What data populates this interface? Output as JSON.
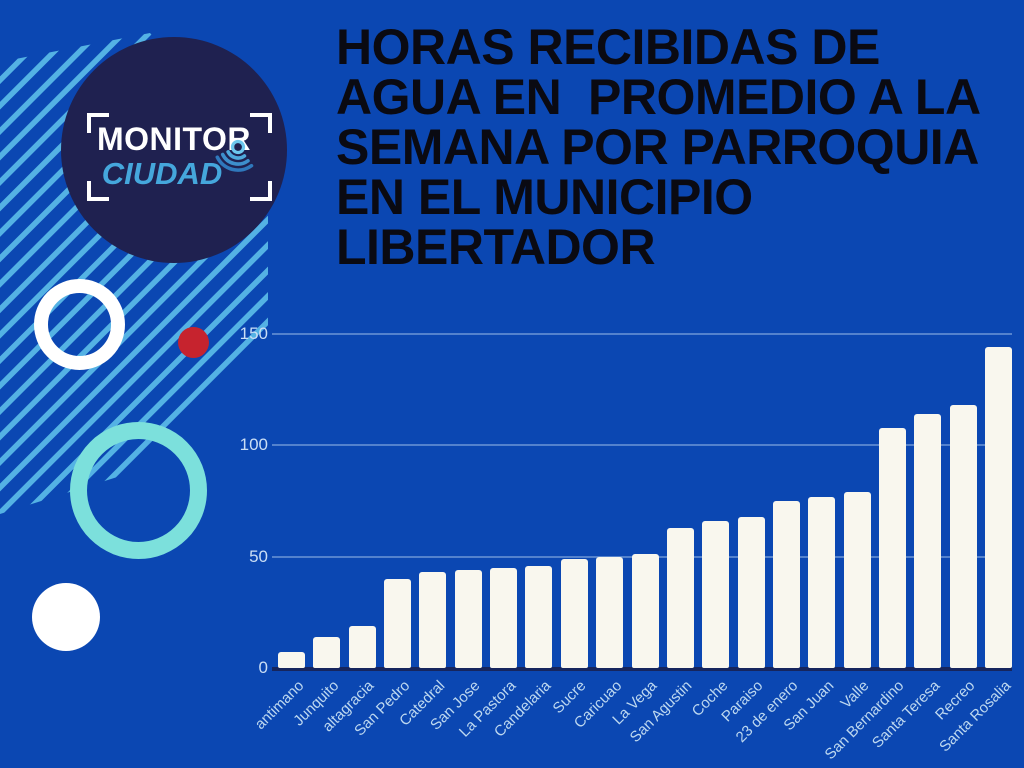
{
  "page": {
    "background_color": "#0b47b2",
    "stripe_color": "#54b2e4"
  },
  "logo": {
    "line1": "MONITOR",
    "line2": "CIUDAD",
    "circle_color": "#1f2150",
    "line1_color": "#ffffff",
    "line2_color": "#45a7dc",
    "icon": "signal-arcs-icon"
  },
  "decor": {
    "red_dot_color": "#c6232e",
    "cyan_ring_color": "#7ce0dc",
    "white_color": "#ffffff"
  },
  "header": {
    "title_lines": [
      "HORAS RECIBIDAS DE",
      "AGUA EN  PROMEDIO A LA",
      "SEMANA POR PARROQUIA",
      "EN EL MUNICIPIO",
      "LIBERTADOR"
    ],
    "title_color": "#0a0a12"
  },
  "chart_data": {
    "type": "bar",
    "title": "Horas recibidas de agua en promedio a la semana por parroquia en el Municipio Libertador",
    "categories": [
      "antimano",
      "Junquito",
      "altagracia",
      "San Pedro",
      "Catedral",
      "San Jose",
      "La Pastora",
      "Candelaria",
      "Sucre",
      "Caricuao",
      "La Vega",
      "San Agustin",
      "Coche",
      "Paraiso",
      "23 de enero",
      "San Juan",
      "Valle",
      "San Bernardino",
      "Santa Teresa",
      "Recreo",
      "Santa Rosalia"
    ],
    "values": [
      7,
      14,
      19,
      40,
      43,
      44,
      45,
      46,
      49,
      50,
      51,
      63,
      66,
      68,
      75,
      77,
      79,
      108,
      114,
      118,
      144
    ],
    "xlabel": "",
    "ylabel": "",
    "ylim": [
      0,
      150
    ],
    "yticks": [
      0,
      50,
      100,
      150
    ],
    "grid": true,
    "legend": false,
    "bar_color": "#f9f7ee",
    "gridline_color": "rgba(205,226,250,0.38)",
    "axis_line_color": "#16255d",
    "tick_label_color": "#cadef5",
    "category_label_color": "#bdd8f0"
  }
}
